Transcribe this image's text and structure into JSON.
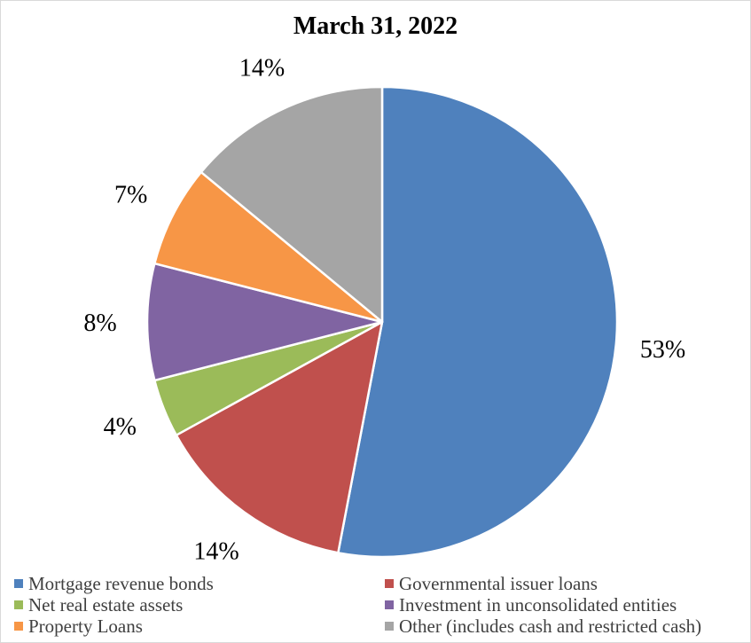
{
  "chart_data": {
    "type": "pie",
    "title": "March 31, 2022",
    "labels": [
      "Mortgage revenue bonds",
      "Governmental issuer loans",
      "Net real estate assets",
      "Investment in unconsolidated entities",
      "Property Loans",
      "Other (includes cash and restricted cash)"
    ],
    "values": [
      53,
      14,
      4,
      8,
      7,
      14
    ],
    "value_labels": [
      "53%",
      "14%",
      "4%",
      "8%",
      "7%",
      "14%"
    ],
    "colors": [
      "#4f81bd",
      "#c0504d",
      "#9bbb59",
      "#8064a2",
      "#f79646",
      "#a5a5a5"
    ],
    "legend_position": "bottom",
    "start_angle_deg": 0,
    "direction": "clockwise"
  }
}
